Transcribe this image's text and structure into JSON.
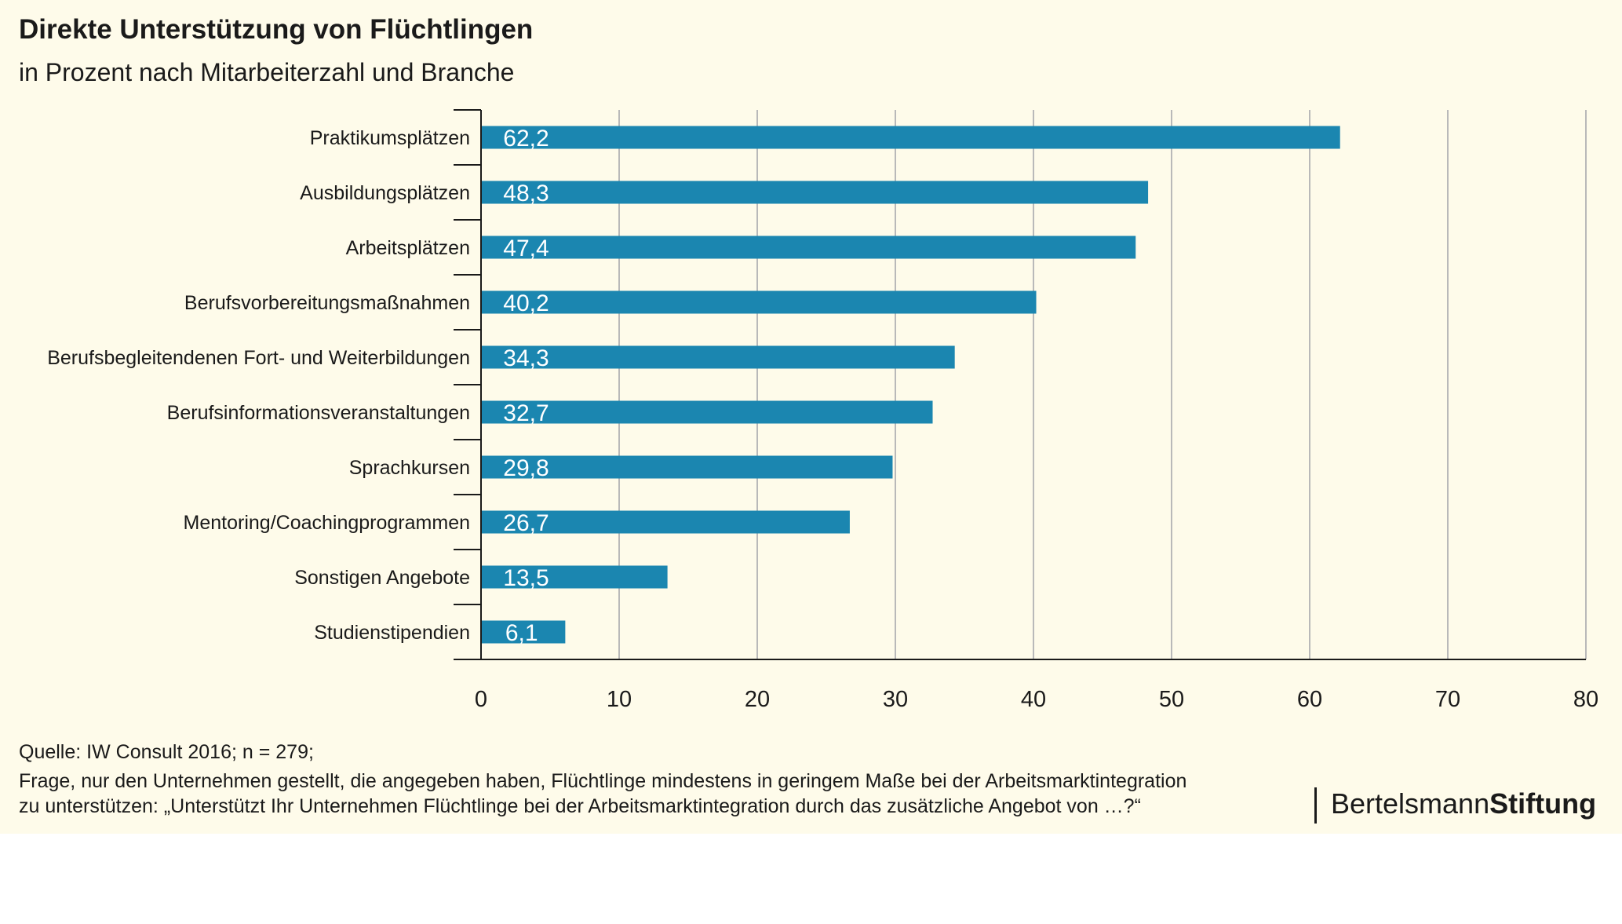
{
  "header": {
    "title": "Direkte Unterstützung von Flüchtlingen",
    "subtitle": "in Prozent nach Mitarbeiterzahl und Branche"
  },
  "footer": {
    "line1": "Quelle: IW Consult 2016; n = 279;",
    "line2": "Frage, nur den Unternehmen gestellt, die angegeben haben, Flüchtlinge mindestens in geringem Maße bei der Arbeitsmarktintegration",
    "line3": "zu unterstützen: „Unterstützt Ihr Unternehmen Flüchtlinge bei der Arbeitsmarktintegration durch das zusätzliche Angebot von …?“"
  },
  "logo": {
    "part1": "Bertelsmann",
    "part2": "Stiftung"
  },
  "colors": {
    "background": "#fefbea",
    "bar": "#1b86b0",
    "bar_label": "#ffffff",
    "grid": "#b9b9b9",
    "axis": "#1a1a1a"
  },
  "chart_data": {
    "type": "bar",
    "orientation": "horizontal",
    "title": "Direkte Unterstützung von Flüchtlingen",
    "subtitle": "in Prozent nach Mitarbeiterzahl und Branche",
    "categories": [
      "Praktikumsplätzen",
      "Ausbildungsplätzen",
      "Arbeitsplätzen",
      "Berufsvorbereitungsmaßnahmen",
      "Berufsbegleitendenen Fort- und Weiterbildungen",
      "Berufsinformationsveranstaltungen",
      "Sprachkursen",
      "Mentoring/Coachingprogrammen",
      "Sonstigen Angebote",
      "Studienstipendien"
    ],
    "values": [
      62.2,
      48.3,
      47.4,
      40.2,
      34.3,
      32.7,
      29.8,
      26.7,
      13.5,
      6.1
    ],
    "data_labels": [
      "62,2",
      "48,3",
      "47,4",
      "40,2",
      "34,3",
      "32,7",
      "29,8",
      "26,7",
      "13,5",
      "6,1"
    ],
    "xlim": [
      0,
      80
    ],
    "xticks": [
      0,
      10,
      20,
      30,
      40,
      50,
      60,
      70,
      80
    ],
    "xlabel": "",
    "ylabel": "",
    "grid": "vertical",
    "legend": "none"
  }
}
